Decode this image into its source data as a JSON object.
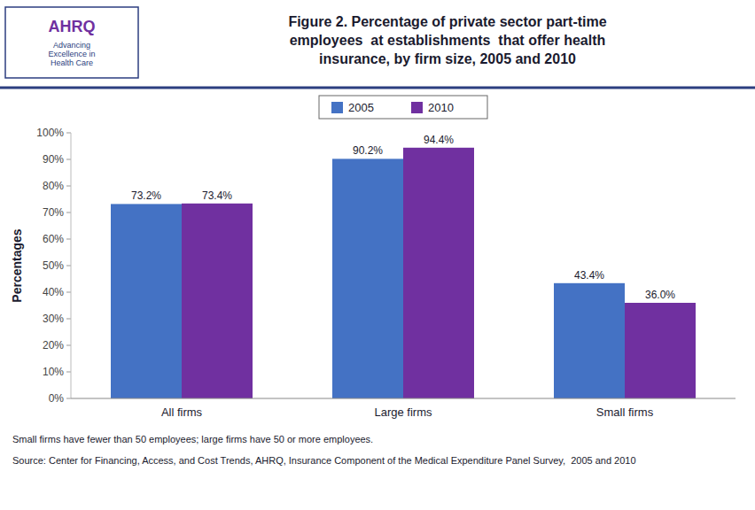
{
  "chart_data": {
    "type": "bar",
    "title": "Figure 2. Percentage of private sector part-time\nemployees  at establishments  that offer health\ninsurance, by firm size, 2005 and 2010",
    "categories": [
      "All firms",
      "Large firms",
      "Small firms"
    ],
    "series": [
      {
        "name": "2005",
        "color": "#4472C4",
        "values": [
          73.2,
          90.2,
          43.4
        ],
        "value_labels": [
          "73.2%",
          "90.2%",
          "43.4%"
        ]
      },
      {
        "name": "2010",
        "color": "#7030A0",
        "values": [
          73.4,
          94.4,
          36.0
        ],
        "value_labels": [
          "73.4%",
          "94.4%",
          "36.0%"
        ]
      }
    ],
    "ylabel": "Percentages",
    "ylim": [
      0,
      100
    ],
    "yticks": [
      {
        "value": 0,
        "label": "0%"
      },
      {
        "value": 10,
        "label": "10%"
      },
      {
        "value": 20,
        "label": "20%"
      },
      {
        "value": 30,
        "label": "30%"
      },
      {
        "value": 40,
        "label": "40%"
      },
      {
        "value": 50,
        "label": "50%"
      },
      {
        "value": 60,
        "label": "60%"
      },
      {
        "value": 70,
        "label": "70%"
      },
      {
        "value": 80,
        "label": "80%"
      },
      {
        "value": 90,
        "label": "90%"
      },
      {
        "value": 100,
        "label": "100%"
      }
    ],
    "grid": false,
    "legend": "top",
    "data_labels": true,
    "annotations": [
      "AHRQ",
      "Advancing\nExcellence in\nHealth Care",
      "Small firms have fewer than 50 employees; large firms have 50 or more employees.",
      "Source: Center for Financing, Access, and Cost Trends, AHRQ, Insurance Component of the Medical Expenditure Panel Survey,  2005 and 2010"
    ]
  }
}
